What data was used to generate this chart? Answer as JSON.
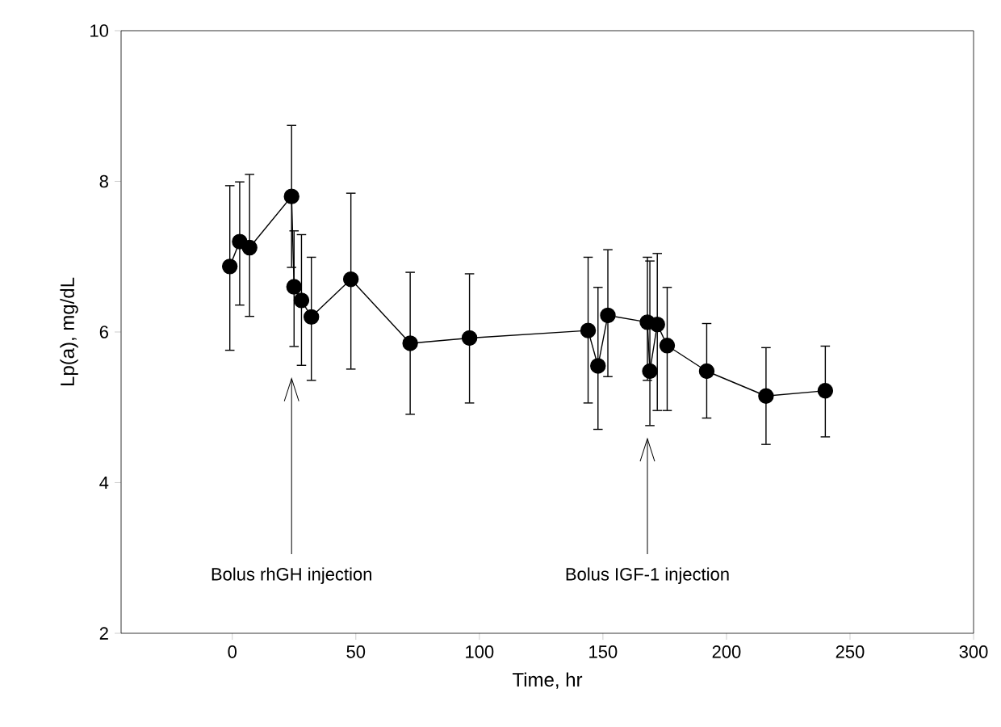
{
  "chart_data": {
    "type": "line",
    "xlabel": "Time, hr",
    "ylabel": "Lp(a), mg/dL",
    "x": [
      -1,
      3,
      7,
      24,
      25,
      28,
      32,
      48,
      72,
      96,
      144,
      148,
      152,
      168,
      169,
      172,
      176,
      192,
      216,
      240
    ],
    "values": [
      6.87,
      7.2,
      7.12,
      7.8,
      6.6,
      6.42,
      6.2,
      6.7,
      5.85,
      5.92,
      6.02,
      5.55,
      6.22,
      6.13,
      5.48,
      6.1,
      5.82,
      5.48,
      5.15,
      5.22
    ],
    "errors": [
      [
        5.75,
        7.95
      ],
      [
        6.35,
        8.0
      ],
      [
        6.2,
        8.1
      ],
      [
        6.85,
        8.75
      ],
      [
        5.8,
        7.35
      ],
      [
        5.55,
        7.3
      ],
      [
        5.35,
        7.0
      ],
      [
        5.5,
        7.85
      ],
      [
        4.9,
        6.8
      ],
      [
        5.05,
        6.78
      ],
      [
        5.05,
        7.0
      ],
      [
        4.7,
        6.6
      ],
      [
        5.4,
        7.1
      ],
      [
        5.35,
        7.0
      ],
      [
        4.75,
        6.95
      ],
      [
        4.95,
        7.05
      ],
      [
        4.95,
        6.6
      ],
      [
        4.85,
        6.12
      ],
      [
        4.5,
        5.8
      ],
      [
        4.6,
        5.82
      ]
    ],
    "color": "#000000",
    "marker": "circle",
    "line_style": "solid",
    "grid": false,
    "xlim": [
      -45,
      300
    ],
    "xticks": [
      0,
      50,
      100,
      150,
      200,
      250,
      300
    ],
    "ylim": [
      2,
      10
    ],
    "yticks": [
      2,
      4,
      6,
      8,
      10
    ],
    "ref_lines": [
      {
        "axis": "x",
        "value": 24,
        "label": "Bolus rhGH injection"
      },
      {
        "axis": "x",
        "value": 168,
        "label": "Bolus IGF-1 injection"
      }
    ]
  }
}
